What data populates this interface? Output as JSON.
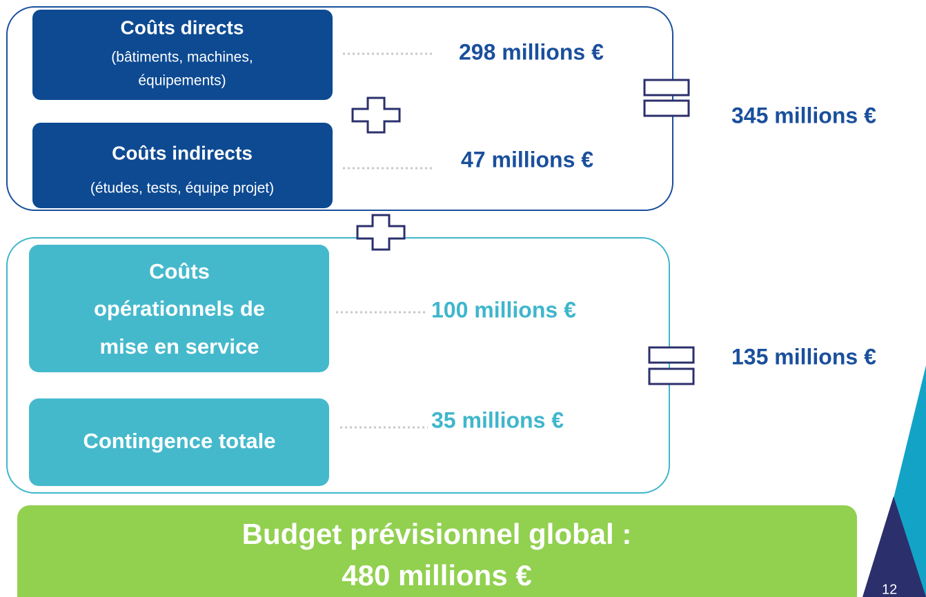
{
  "blocks": [
    {
      "items": [
        {
          "title": [
            "Coûts directs"
          ],
          "details": [
            "(bâtiments, machines,",
            "équipements)"
          ],
          "amount": "298 millions €"
        },
        {
          "title": [
            "Coûts indirects"
          ],
          "details": [
            "(études, tests, équipe projet)"
          ],
          "amount": "47 millions €"
        }
      ],
      "sum": "345 millions €"
    },
    {
      "items": [
        {
          "title": [
            "Coûts",
            "opérationnels de",
            "mise en service"
          ],
          "amount": "100 millions €"
        },
        {
          "title": [
            "Contingence totale"
          ],
          "amount": "35 millions €"
        }
      ],
      "sum": "135 millions €"
    }
  ],
  "total": [
    "Budget prévisionnel global :",
    "480 millions €"
  ],
  "page_number": "12"
}
